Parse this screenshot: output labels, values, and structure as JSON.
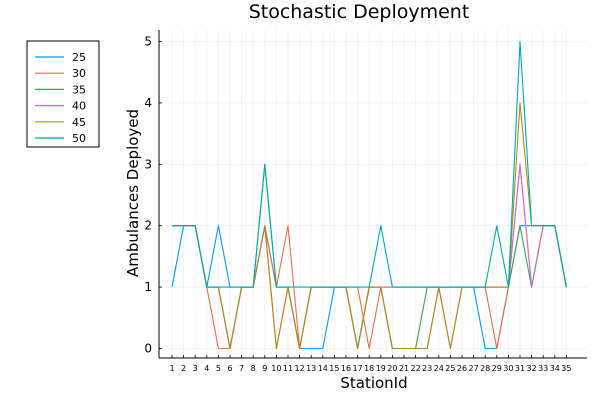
{
  "chart_data": {
    "type": "line",
    "title": "Stochastic Deployment",
    "xlabel": "StationId",
    "ylabel": "Ambulances Deployed",
    "x": [
      1,
      2,
      3,
      4,
      5,
      6,
      7,
      8,
      9,
      10,
      11,
      12,
      13,
      14,
      15,
      16,
      17,
      18,
      19,
      20,
      21,
      22,
      23,
      24,
      25,
      26,
      27,
      28,
      29,
      30,
      31,
      32,
      33,
      34,
      35
    ],
    "xlim": [
      1,
      35
    ],
    "ylim": [
      0,
      5
    ],
    "yticks": [
      0,
      1,
      2,
      3,
      4,
      5
    ],
    "grid": true,
    "legend_position": "top-left, outside plot area",
    "series": [
      {
        "name": "25",
        "color": "#009AFA",
        "values": [
          1,
          2,
          2,
          1,
          2,
          1,
          1,
          1,
          2,
          1,
          1,
          0,
          0,
          0,
          1,
          1,
          0,
          1,
          1,
          1,
          1,
          1,
          1,
          1,
          1,
          1,
          1,
          0,
          0,
          1,
          2,
          2,
          2,
          2,
          1
        ]
      },
      {
        "name": "30",
        "color": "#E36F47",
        "values": [
          2,
          2,
          2,
          1,
          0,
          0,
          1,
          1,
          2,
          1,
          2,
          0,
          1,
          1,
          1,
          1,
          1,
          0,
          1,
          1,
          1,
          1,
          1,
          1,
          1,
          1,
          1,
          1,
          0,
          1,
          3,
          1,
          2,
          2,
          1
        ]
      },
      {
        "name": "35",
        "color": "#3EA44E",
        "values": [
          2,
          2,
          2,
          1,
          1,
          0,
          1,
          1,
          3,
          1,
          1,
          0,
          1,
          1,
          1,
          1,
          0,
          1,
          1,
          0,
          0,
          0,
          1,
          1,
          1,
          1,
          1,
          1,
          1,
          1,
          2,
          1,
          2,
          2,
          1
        ]
      },
      {
        "name": "40",
        "color": "#C371D2",
        "values": [
          2,
          2,
          2,
          1,
          1,
          0,
          1,
          1,
          2,
          0,
          1,
          0,
          1,
          1,
          1,
          1,
          0,
          1,
          1,
          0,
          0,
          0,
          0,
          1,
          0,
          1,
          1,
          1,
          1,
          1,
          3,
          1,
          2,
          2,
          1
        ]
      },
      {
        "name": "45",
        "color": "#AC8D18",
        "values": [
          2,
          2,
          2,
          1,
          1,
          0,
          1,
          1,
          2,
          0,
          1,
          0,
          1,
          1,
          1,
          1,
          0,
          1,
          1,
          0,
          0,
          0,
          0,
          1,
          0,
          1,
          1,
          1,
          1,
          1,
          4,
          2,
          2,
          2,
          1
        ]
      },
      {
        "name": "50",
        "color": "#00A9AD",
        "values": [
          2,
          2,
          2,
          1,
          1,
          1,
          1,
          1,
          3,
          1,
          1,
          1,
          1,
          1,
          1,
          1,
          1,
          1,
          2,
          1,
          1,
          1,
          1,
          1,
          1,
          1,
          1,
          1,
          2,
          1,
          5,
          2,
          2,
          2,
          1
        ]
      }
    ]
  }
}
